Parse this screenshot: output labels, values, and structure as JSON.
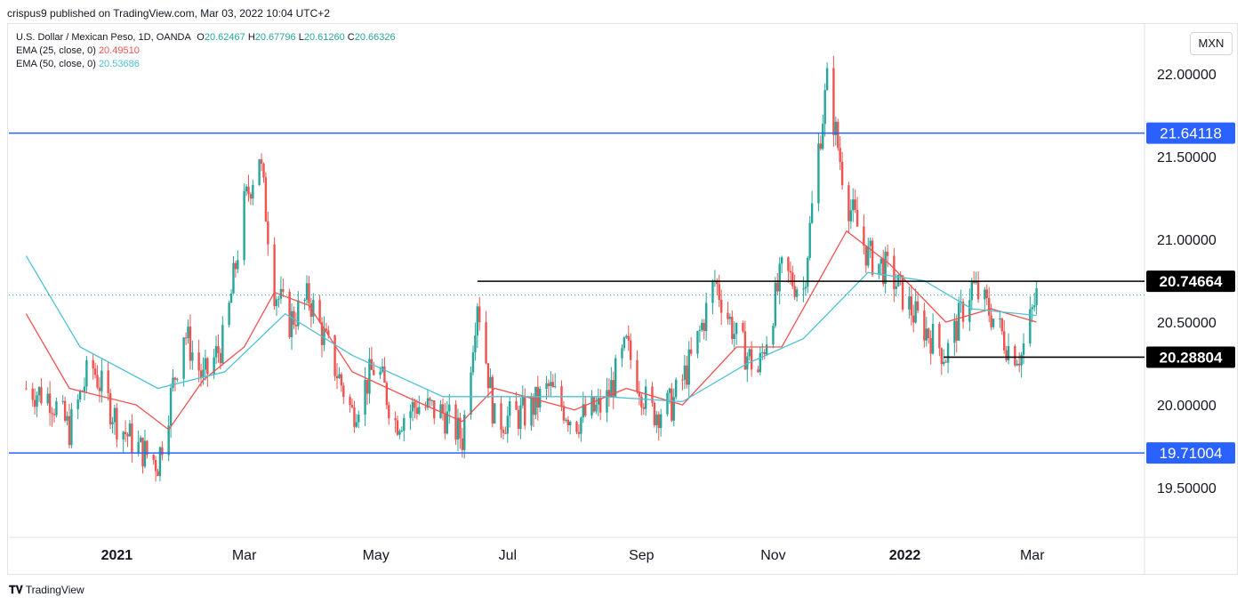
{
  "attribution": "crispus9 published on TradingView.com, Mar 03, 2022 10:04 UTC+2",
  "legend": {
    "symbol": "U.S. Dollar / Mexican Peso, 1D, OANDA",
    "o_label": "O",
    "o": "20.62467",
    "h_label": "H",
    "h": "20.67796",
    "l_label": "L",
    "l": "20.61260",
    "c_label": "C",
    "c": "20.66326",
    "ema25_label": "EMA (25, close, 0)",
    "ema25_value": "20.49510",
    "ema50_label": "EMA (50, close, 0)",
    "ema50_value": "20.53686"
  },
  "currency": "MXN",
  "footer": "TradingView",
  "colors": {
    "up": "#26a69a",
    "down": "#ef5350",
    "ema25": "#ef5350",
    "ema50": "#4ec1d4",
    "blue_line": "#2962ff",
    "black_line": "#000000",
    "grid": "#e0e3eb"
  },
  "chart_data": {
    "type": "candlestick",
    "title": "U.S. Dollar / Mexican Peso, 1D, OANDA",
    "ylim": [
      19.2,
      22.3
    ],
    "y_ticks": [
      "22.00000",
      "21.50000",
      "21.00000",
      "20.50000",
      "20.00000",
      "19.50000"
    ],
    "y_tick_values": [
      22.0,
      21.5,
      21.0,
      20.5,
      20.0,
      19.5
    ],
    "x_ticks": [
      "2021",
      "Mar",
      "May",
      "Jul",
      "Sep",
      "Nov",
      "2022",
      "Mar"
    ],
    "x_tick_bold": [
      true,
      false,
      false,
      false,
      false,
      false,
      true,
      false
    ],
    "x_tick_dates": [
      "2021-01-01",
      "2021-03-01",
      "2021-05-01",
      "2021-07-01",
      "2021-09-01",
      "2021-11-01",
      "2022-01-01",
      "2022-03-01"
    ],
    "last_close": 20.66326,
    "horizontal_levels": [
      {
        "value": 21.64118,
        "label": "21.64118",
        "style": "blue",
        "from": "start",
        "to": "end"
      },
      {
        "value": 19.71004,
        "label": "19.71004",
        "style": "blue",
        "from": "start",
        "to": "end"
      },
      {
        "value": 20.74664,
        "label": "20.74664",
        "style": "black",
        "from": "2021-06-17",
        "to": "end"
      },
      {
        "value": 20.28804,
        "label": "20.28804",
        "style": "black",
        "from": "2022-01-19",
        "to": "end"
      }
    ],
    "series": [
      {
        "name": "USD/MXN",
        "close_path": [
          [
            "2020-11-20",
            20.1
          ],
          [
            "2020-12-01",
            20.05
          ],
          [
            "2020-12-10",
            19.85
          ],
          [
            "2020-12-20",
            20.25
          ],
          [
            "2021-01-01",
            19.9
          ],
          [
            "2021-01-10",
            19.75
          ],
          [
            "2021-01-20",
            19.65
          ],
          [
            "2021-02-01",
            20.45
          ],
          [
            "2021-02-10",
            20.15
          ],
          [
            "2021-02-20",
            20.4
          ],
          [
            "2021-03-01",
            21.2
          ],
          [
            "2021-03-08",
            21.52
          ],
          [
            "2021-03-15",
            20.7
          ],
          [
            "2021-03-22",
            20.5
          ],
          [
            "2021-03-31",
            20.65
          ],
          [
            "2021-04-10",
            20.3
          ],
          [
            "2021-04-20",
            19.95
          ],
          [
            "2021-05-01",
            20.25
          ],
          [
            "2021-05-10",
            19.9
          ],
          [
            "2021-05-20",
            20.0
          ],
          [
            "2021-06-01",
            19.95
          ],
          [
            "2021-06-10",
            19.8
          ],
          [
            "2021-06-17",
            20.65
          ],
          [
            "2021-06-25",
            19.9
          ],
          [
            "2021-07-10",
            19.95
          ],
          [
            "2021-07-20",
            20.1
          ],
          [
            "2021-08-01",
            19.9
          ],
          [
            "2021-08-15",
            20.0
          ],
          [
            "2021-08-25",
            20.35
          ],
          [
            "2021-09-05",
            19.95
          ],
          [
            "2021-09-15",
            20.0
          ],
          [
            "2021-09-25",
            20.3
          ],
          [
            "2021-10-05",
            20.75
          ],
          [
            "2021-10-15",
            20.4
          ],
          [
            "2021-10-25",
            20.2
          ],
          [
            "2021-11-05",
            20.8
          ],
          [
            "2021-11-15",
            20.7
          ],
          [
            "2021-11-22",
            21.55
          ],
          [
            "2021-11-26",
            21.95
          ],
          [
            "2021-12-05",
            21.25
          ],
          [
            "2021-12-15",
            20.9
          ],
          [
            "2021-12-25",
            20.8
          ],
          [
            "2022-01-05",
            20.55
          ],
          [
            "2022-01-20",
            20.3
          ],
          [
            "2022-02-01",
            20.72
          ],
          [
            "2022-02-10",
            20.55
          ],
          [
            "2022-02-18",
            20.35
          ],
          [
            "2022-02-24",
            20.3
          ],
          [
            "2022-03-03",
            20.66
          ]
        ]
      },
      {
        "name": "EMA (25, close, 0)",
        "path": [
          [
            "2020-11-20",
            20.55
          ],
          [
            "2020-12-10",
            20.1
          ],
          [
            "2021-01-10",
            20.0
          ],
          [
            "2021-01-25",
            19.85
          ],
          [
            "2021-02-10",
            20.15
          ],
          [
            "2021-03-01",
            20.35
          ],
          [
            "2021-03-15",
            20.68
          ],
          [
            "2021-03-31",
            20.6
          ],
          [
            "2021-04-20",
            20.2
          ],
          [
            "2021-05-20",
            20.02
          ],
          [
            "2021-06-10",
            19.9
          ],
          [
            "2021-06-25",
            20.1
          ],
          [
            "2021-08-01",
            19.97
          ],
          [
            "2021-08-25",
            20.1
          ],
          [
            "2021-09-20",
            20.0
          ],
          [
            "2021-10-15",
            20.35
          ],
          [
            "2021-11-05",
            20.35
          ],
          [
            "2021-11-20",
            20.7
          ],
          [
            "2021-12-05",
            21.05
          ],
          [
            "2021-12-25",
            20.85
          ],
          [
            "2022-01-20",
            20.5
          ],
          [
            "2022-02-10",
            20.58
          ],
          [
            "2022-03-03",
            20.5
          ]
        ]
      },
      {
        "name": "EMA (50, close, 0)",
        "path": [
          [
            "2020-11-20",
            20.9
          ],
          [
            "2020-12-15",
            20.35
          ],
          [
            "2021-01-20",
            20.1
          ],
          [
            "2021-02-20",
            20.2
          ],
          [
            "2021-03-20",
            20.55
          ],
          [
            "2021-04-20",
            20.3
          ],
          [
            "2021-06-01",
            20.05
          ],
          [
            "2021-07-01",
            20.05
          ],
          [
            "2021-08-15",
            20.05
          ],
          [
            "2021-09-20",
            20.02
          ],
          [
            "2021-10-20",
            20.25
          ],
          [
            "2021-11-15",
            20.4
          ],
          [
            "2021-12-15",
            20.8
          ],
          [
            "2022-01-10",
            20.75
          ],
          [
            "2022-02-01",
            20.58
          ],
          [
            "2022-03-03",
            20.54
          ]
        ]
      }
    ]
  }
}
